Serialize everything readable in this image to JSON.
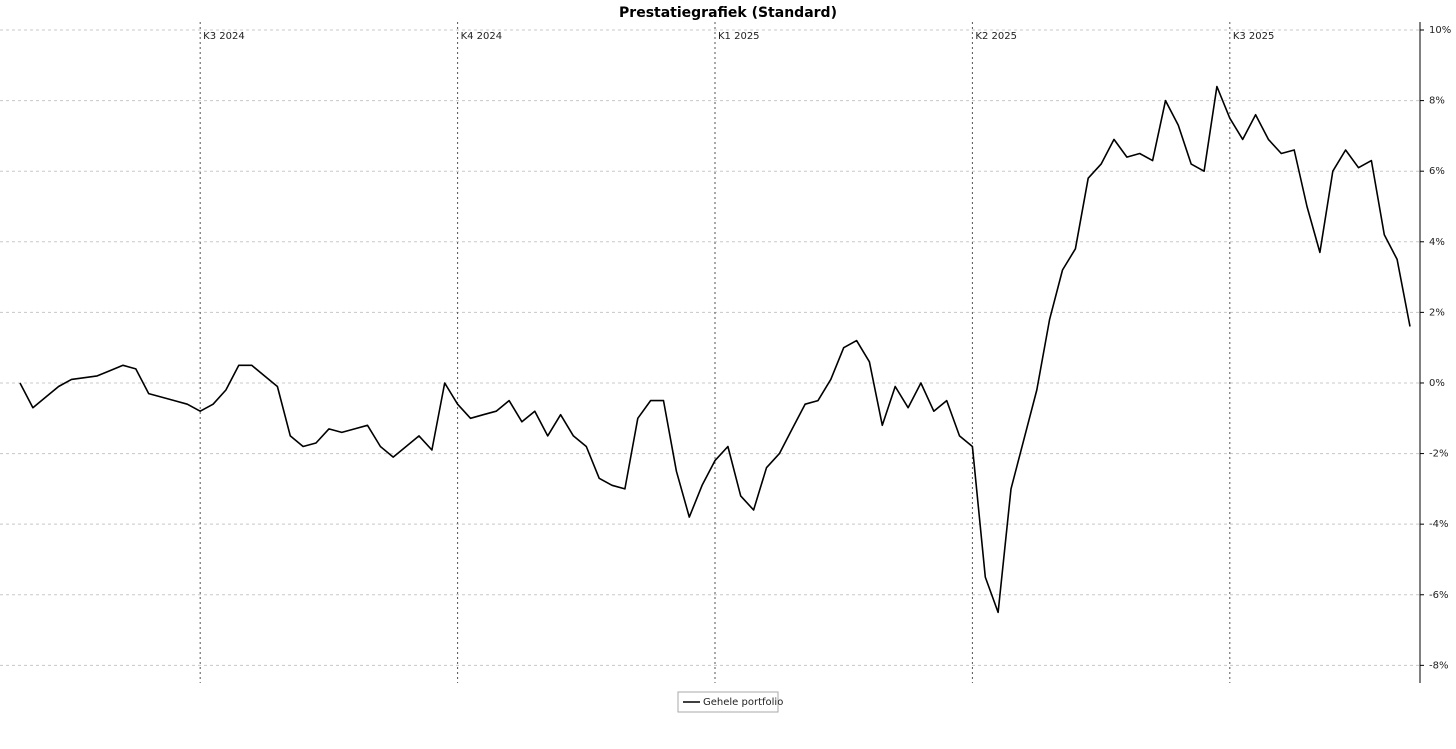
{
  "chart_data": {
    "type": "line",
    "title": "Prestatiegrafiek (Standard)",
    "categories": [
      null,
      null,
      null,
      null,
      null,
      null,
      null,
      null,
      null,
      null,
      null,
      null,
      null,
      null,
      "K3 2024",
      null,
      null,
      null,
      null,
      null,
      null,
      null,
      null,
      null,
      null,
      null,
      null,
      null,
      null,
      null,
      null,
      null,
      null,
      null,
      "K4 2024",
      null,
      null,
      null,
      null,
      null,
      null,
      null,
      null,
      null,
      null,
      null,
      null,
      null,
      null,
      null,
      null,
      null,
      null,
      null,
      "K1 2025",
      null,
      null,
      null,
      null,
      null,
      null,
      null,
      null,
      null,
      null,
      null,
      null,
      null,
      null,
      null,
      null,
      null,
      null,
      null,
      "K2 2025",
      null,
      null,
      null,
      null,
      null,
      null,
      null,
      null,
      null,
      null,
      null,
      null,
      null,
      null,
      null,
      null,
      null,
      null,
      null,
      "K3 2025",
      null,
      null,
      null,
      null,
      null,
      null,
      null,
      null,
      null,
      null,
      null,
      null,
      null,
      null
    ],
    "series": [
      {
        "name": "Gehele portfolio",
        "color": "#000000",
        "values": [
          0,
          -0.7,
          -0.4,
          -0.1,
          0.1,
          0.15,
          0.2,
          0.35,
          0.5,
          0.4,
          -0.3,
          -0.4,
          -0.5,
          -0.6,
          -0.8,
          -0.6,
          -0.2,
          0.5,
          0.5,
          0.2,
          -0.1,
          -1.5,
          -1.8,
          -1.7,
          -1.3,
          -1.4,
          -1.3,
          -1.2,
          -1.8,
          -2.1,
          -1.8,
          -1.5,
          -1.9,
          0,
          -0.6,
          -1.0,
          -0.9,
          -0.8,
          -0.5,
          -1.1,
          -0.8,
          -1.5,
          -0.9,
          -1.5,
          -1.8,
          -2.7,
          -2.9,
          -3.0,
          -1.0,
          -0.5,
          -0.5,
          -2.5,
          -3.8,
          -2.9,
          -2.2,
          -1.8,
          -3.2,
          -3.6,
          -2.4,
          -2.0,
          -1.3,
          -0.6,
          -0.5,
          0.1,
          1.0,
          1.2,
          0.6,
          -1.2,
          -0.1,
          -0.7,
          0.0,
          -0.8,
          -0.5,
          -1.5,
          -1.8,
          -5.5,
          -6.5,
          -3.0,
          -1.6,
          -0.2,
          1.8,
          3.2,
          3.8,
          5.8,
          6.2,
          6.9,
          6.4,
          6.5,
          6.3,
          8.0,
          7.3,
          6.2,
          6.0,
          8.4,
          7.5,
          6.9,
          7.6,
          6.9,
          6.5,
          6.6,
          5.0,
          3.7,
          6.0,
          6.6,
          6.1,
          6.3,
          4.2,
          3.5,
          1.6
        ]
      }
    ],
    "ylim": [
      -8.5,
      10
    ],
    "yticks": [
      {
        "value": -8,
        "label": "-8%"
      },
      {
        "value": -6,
        "label": "-6%"
      },
      {
        "value": -4,
        "label": "-4%"
      },
      {
        "value": -2,
        "label": "-2%"
      },
      {
        "value": 0,
        "label": "0%"
      },
      {
        "value": 2,
        "label": "2%"
      },
      {
        "value": 4,
        "label": "4%"
      },
      {
        "value": 6,
        "label": "6%"
      },
      {
        "value": 8,
        "label": "8%"
      },
      {
        "value": 10,
        "label": "10%"
      }
    ],
    "grid": true
  }
}
